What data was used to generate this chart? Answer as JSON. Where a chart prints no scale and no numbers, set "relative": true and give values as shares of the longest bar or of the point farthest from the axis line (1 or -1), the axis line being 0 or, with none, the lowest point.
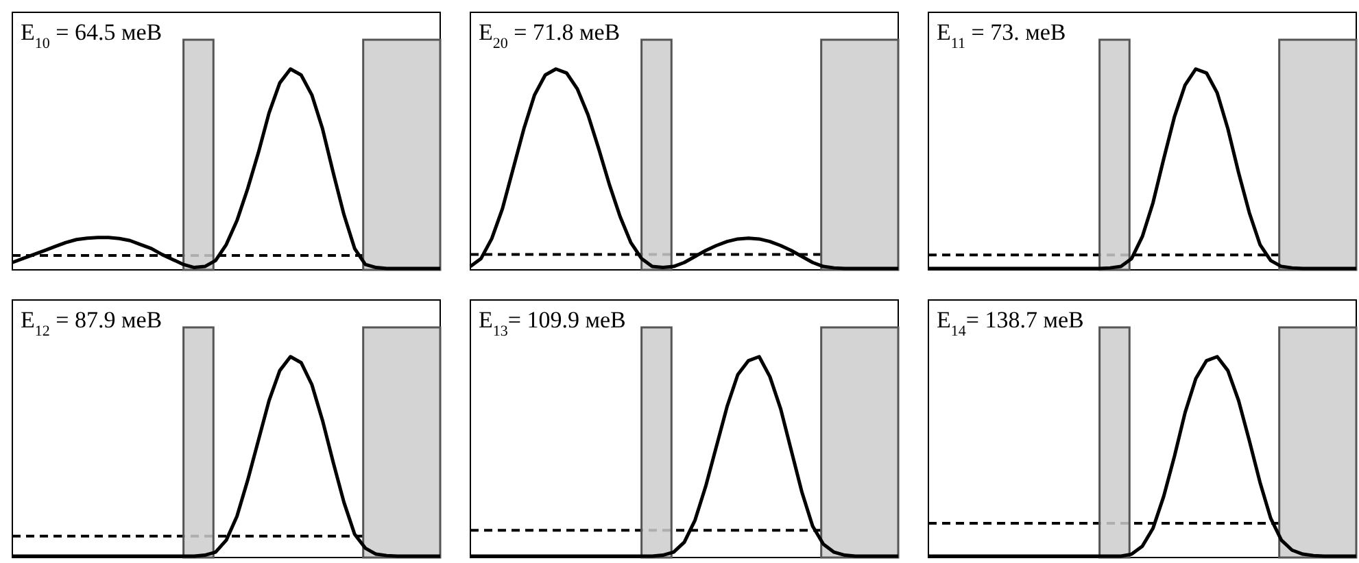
{
  "chart_data": [
    {
      "type": "line",
      "title": "E$_{10}$ = 64.5 меВ",
      "relative": true,
      "categories": [
        null,
        null,
        null,
        null,
        null,
        null,
        null,
        null,
        null,
        null,
        null,
        null,
        null,
        null,
        null,
        null,
        null,
        null,
        null,
        null,
        null,
        null,
        null,
        null,
        null,
        null,
        null,
        null,
        null,
        null,
        null,
        null,
        null,
        null,
        null,
        null,
        null,
        null,
        null,
        null,
        null
      ],
      "series": [
        {
          "color": "#000000",
          "values": [
            0.03,
            0.05,
            0.07,
            0.09,
            0.11,
            0.13,
            0.145,
            0.152,
            0.155,
            0.155,
            0.15,
            0.14,
            0.12,
            0.1,
            0.07,
            0.045,
            0.02,
            0.005,
            0.01,
            0.04,
            0.12,
            0.24,
            0.4,
            0.58,
            0.78,
            0.93,
            1,
            0.97,
            0.87,
            0.7,
            0.48,
            0.27,
            0.1,
            0.02,
            0.005,
            0,
            0,
            0,
            0,
            0,
            0
          ]
        }
      ],
      "ref_lines": [
        {
          "axis": "y",
          "value": 0.065,
          "line_style": "dashed",
          "color": "#000000"
        }
      ]
    },
    {
      "type": "line",
      "title": "E$_{20}$ = 71.8 меВ",
      "relative": true,
      "categories": [
        null,
        null,
        null,
        null,
        null,
        null,
        null,
        null,
        null,
        null,
        null,
        null,
        null,
        null,
        null,
        null,
        null,
        null,
        null,
        null,
        null,
        null,
        null,
        null,
        null,
        null,
        null,
        null,
        null,
        null,
        null,
        null,
        null,
        null,
        null,
        null,
        null,
        null,
        null,
        null,
        null
      ],
      "series": [
        {
          "color": "#000000",
          "values": [
            0.01,
            0.05,
            0.15,
            0.3,
            0.5,
            0.7,
            0.87,
            0.97,
            1,
            0.98,
            0.9,
            0.77,
            0.6,
            0.42,
            0.26,
            0.13,
            0.05,
            0.01,
            0.005,
            0.01,
            0.03,
            0.06,
            0.09,
            0.115,
            0.135,
            0.148,
            0.152,
            0.148,
            0.135,
            0.115,
            0.09,
            0.06,
            0.03,
            0.01,
            0.003,
            0,
            0,
            0,
            0,
            0,
            0
          ]
        }
      ],
      "ref_lines": [
        {
          "axis": "y",
          "value": 0.07,
          "line_style": "dashed",
          "color": "#000000"
        }
      ]
    },
    {
      "type": "line",
      "title": "E$_{11}$ = 73. меВ",
      "relative": true,
      "categories": [
        null,
        null,
        null,
        null,
        null,
        null,
        null,
        null,
        null,
        null,
        null,
        null,
        null,
        null,
        null,
        null,
        null,
        null,
        null,
        null,
        null,
        null,
        null,
        null,
        null,
        null,
        null,
        null,
        null,
        null,
        null,
        null,
        null,
        null,
        null,
        null,
        null,
        null,
        null,
        null,
        null
      ],
      "series": [
        {
          "color": "#000000",
          "values": [
            0,
            0,
            0,
            0,
            0,
            0,
            0,
            0,
            0,
            0,
            0,
            0,
            0,
            0,
            0,
            0,
            0,
            0.003,
            0.01,
            0.05,
            0.16,
            0.33,
            0.55,
            0.76,
            0.92,
            1,
            0.98,
            0.88,
            0.7,
            0.48,
            0.28,
            0.12,
            0.04,
            0.01,
            0.003,
            0,
            0,
            0,
            0,
            0,
            0
          ]
        }
      ],
      "ref_lines": [
        {
          "axis": "y",
          "value": 0.068,
          "line_style": "dashed",
          "color": "#000000"
        }
      ]
    },
    {
      "type": "line",
      "title": "E$_{12}$ = 87.9 меВ",
      "relative": true,
      "categories": [
        null,
        null,
        null,
        null,
        null,
        null,
        null,
        null,
        null,
        null,
        null,
        null,
        null,
        null,
        null,
        null,
        null,
        null,
        null,
        null,
        null,
        null,
        null,
        null,
        null,
        null,
        null,
        null,
        null,
        null,
        null,
        null,
        null,
        null,
        null,
        null,
        null,
        null,
        null,
        null,
        null
      ],
      "series": [
        {
          "color": "#000000",
          "values": [
            0,
            0,
            0,
            0,
            0,
            0,
            0,
            0,
            0,
            0,
            0,
            0,
            0,
            0,
            0,
            0,
            0,
            0,
            0.005,
            0.02,
            0.08,
            0.2,
            0.38,
            0.58,
            0.78,
            0.93,
            1,
            0.97,
            0.86,
            0.68,
            0.47,
            0.27,
            0.11,
            0.04,
            0.01,
            0.003,
            0,
            0,
            0,
            0,
            0
          ]
        }
      ],
      "ref_lines": [
        {
          "axis": "y",
          "value": 0.1,
          "line_style": "dashed",
          "color": "#000000"
        }
      ]
    },
    {
      "type": "line",
      "title": "E$_{13}$= 109.9 меВ",
      "relative": true,
      "categories": [
        null,
        null,
        null,
        null,
        null,
        null,
        null,
        null,
        null,
        null,
        null,
        null,
        null,
        null,
        null,
        null,
        null,
        null,
        null,
        null,
        null,
        null,
        null,
        null,
        null,
        null,
        null,
        null,
        null,
        null,
        null,
        null,
        null,
        null,
        null,
        null,
        null,
        null,
        null,
        null,
        null
      ],
      "series": [
        {
          "color": "#000000",
          "values": [
            0,
            0,
            0,
            0,
            0,
            0,
            0,
            0,
            0,
            0,
            0,
            0,
            0,
            0,
            0,
            0,
            0,
            0,
            0.005,
            0.02,
            0.07,
            0.18,
            0.35,
            0.55,
            0.75,
            0.91,
            0.98,
            1,
            0.9,
            0.74,
            0.53,
            0.32,
            0.15,
            0.06,
            0.02,
            0.005,
            0,
            0,
            0,
            0,
            0
          ]
        }
      ],
      "ref_lines": [
        {
          "axis": "y",
          "value": 0.13,
          "line_style": "dashed",
          "color": "#000000"
        }
      ]
    },
    {
      "type": "line",
      "title": "E$_{14}$= 138.7 меВ",
      "relative": true,
      "categories": [
        null,
        null,
        null,
        null,
        null,
        null,
        null,
        null,
        null,
        null,
        null,
        null,
        null,
        null,
        null,
        null,
        null,
        null,
        null,
        null,
        null,
        null,
        null,
        null,
        null,
        null,
        null,
        null,
        null,
        null,
        null,
        null,
        null,
        null,
        null,
        null,
        null,
        null,
        null,
        null,
        null
      ],
      "series": [
        {
          "color": "#000000",
          "values": [
            0,
            0,
            0,
            0,
            0,
            0,
            0,
            0,
            0,
            0,
            0,
            0,
            0,
            0,
            0,
            0,
            0,
            0,
            0,
            0.01,
            0.05,
            0.14,
            0.3,
            0.5,
            0.72,
            0.89,
            0.98,
            1,
            0.93,
            0.78,
            0.58,
            0.37,
            0.19,
            0.08,
            0.03,
            0.01,
            0.003,
            0,
            0,
            0,
            0
          ]
        }
      ],
      "ref_lines": [
        {
          "axis": "y",
          "value": 0.165,
          "line_style": "dashed",
          "color": "#000000"
        }
      ]
    }
  ]
}
